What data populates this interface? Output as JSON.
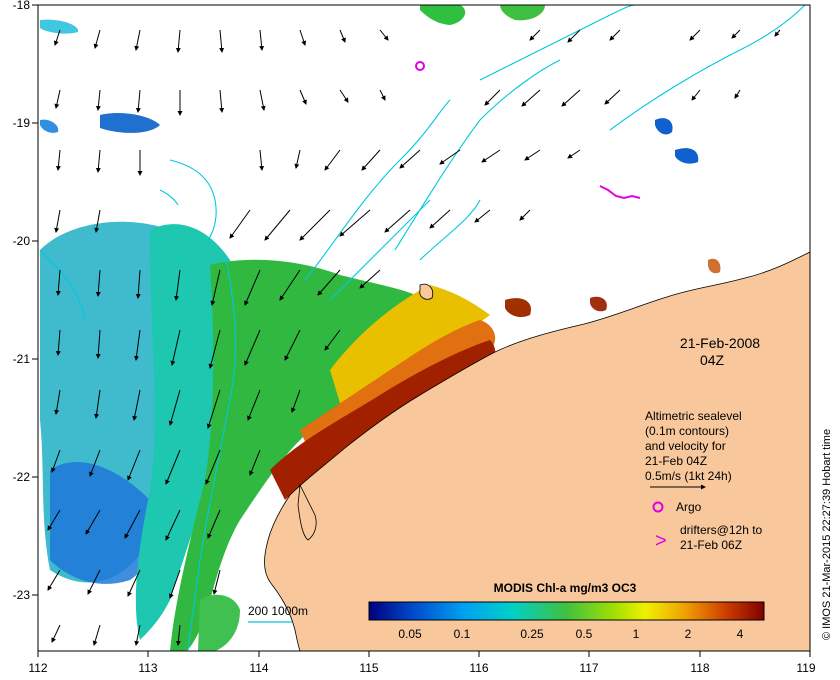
{
  "map": {
    "lon_range": [
      112,
      119
    ],
    "lat_range": [
      -23.5,
      -18
    ],
    "x_ticks": [
      "112",
      "113",
      "114",
      "115",
      "116",
      "117",
      "118",
      "119"
    ],
    "y_ticks": [
      "-18",
      "-19",
      "-20",
      "-21",
      "-22",
      "-23"
    ],
    "land_color": "#f8c89c",
    "contour_color": "#00c8e0"
  },
  "date": {
    "line1": "21-Feb-2008",
    "line2": "04Z"
  },
  "legend": {
    "line1": "Altimetric sealevel",
    "line2": "(0.1m contours)",
    "line3": "and velocity for",
    "line4": "21-Feb 04Z",
    "line5": "0.5m/s (1kt 24h)",
    "argo_label": "Argo",
    "drifter_symbol": ">",
    "drifter_line1": "drifters@12h to",
    "drifter_line2": "21-Feb 06Z",
    "argo_color": "#e000e0",
    "drifter_color": "#e000e0"
  },
  "depth_legend": {
    "label": "200  1000m"
  },
  "colorbar": {
    "title": "MODIS Chl-a mg/m3 OC3",
    "ticks": [
      "0.05",
      "0.1",
      "0.25",
      "0.5",
      "1",
      "2",
      "4"
    ]
  },
  "credit": "© IMOS 21-Mar-2015 22:27:39 Hobart time"
}
